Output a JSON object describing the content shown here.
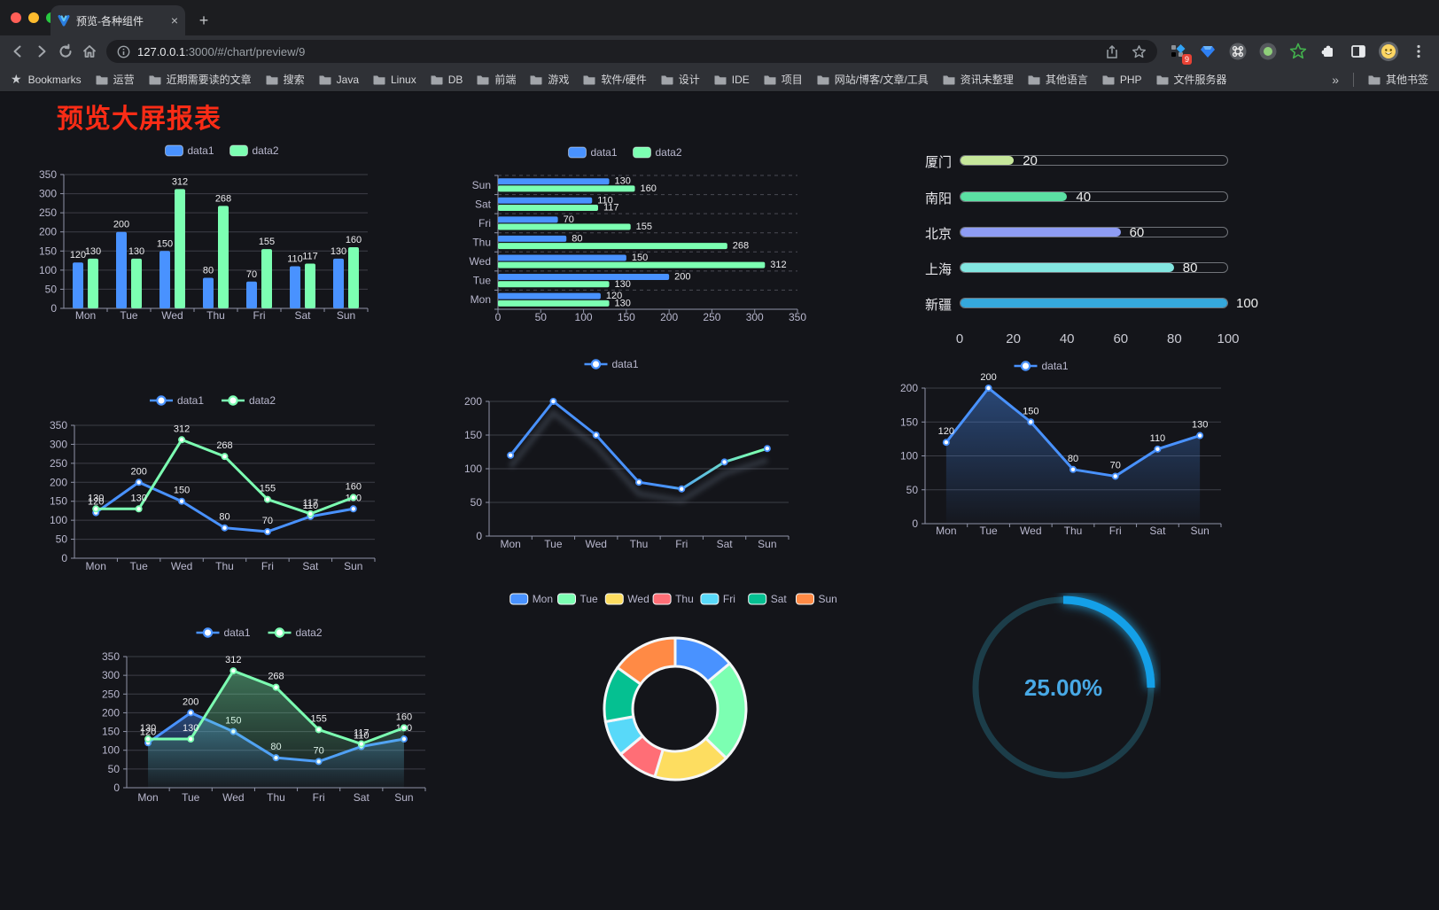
{
  "browser": {
    "traffic_lights": [
      "#ff5f57",
      "#febc2e",
      "#28c840"
    ],
    "tab": {
      "title": "预览-各种组件",
      "close_glyph": "×"
    },
    "new_tab_glyph": "+",
    "url": {
      "host": "127.0.0.1",
      "rest": ":3000/#/chart/preview/9"
    },
    "extension_badge": "9",
    "bookmarks_bar": {
      "star_glyph": "★",
      "label": "Bookmarks",
      "folders": [
        "运营",
        "近期需要读的文章",
        "搜索",
        "Java",
        "Linux",
        "DB",
        "前端",
        "游戏",
        "软件/硬件",
        "设计",
        "IDE",
        "项目",
        "网站/博客/文章/工具",
        "资讯未整理",
        "其他语言",
        "PHP",
        "文件服务器"
      ],
      "overflow_glyph": "»",
      "other_bookmarks": "其他书签"
    }
  },
  "page": {
    "title": "预览大屏报表",
    "title_color": "#fb2c16",
    "background": "#14151a"
  },
  "chart_data": [
    {
      "id": "grouped-bar",
      "type": "bar",
      "categories": [
        "Mon",
        "Tue",
        "Wed",
        "Thu",
        "Fri",
        "Sat",
        "Sun"
      ],
      "series": [
        {
          "name": "data1",
          "color": "#4992ff",
          "values": [
            120,
            200,
            150,
            80,
            70,
            110,
            130
          ]
        },
        {
          "name": "data2",
          "color": "#7cffb2",
          "values": [
            130,
            130,
            312,
            268,
            155,
            117,
            160
          ]
        }
      ],
      "ylim": [
        0,
        350
      ],
      "ytick_step": 50,
      "legend_position": "top",
      "value_labels": true,
      "grid": true
    },
    {
      "id": "grouped-bar-horizontal",
      "type": "bar",
      "orientation": "horizontal",
      "categories": [
        "Mon",
        "Tue",
        "Wed",
        "Thu",
        "Fri",
        "Sat",
        "Sun"
      ],
      "category_order": "Mon at bottom, Sun at top",
      "series": [
        {
          "name": "data1",
          "color": "#4992ff",
          "values": [
            120,
            200,
            150,
            80,
            70,
            110,
            130
          ]
        },
        {
          "name": "data2",
          "color": "#7cffb2",
          "values": [
            130,
            130,
            312,
            268,
            155,
            117,
            160
          ]
        }
      ],
      "xlim": [
        0,
        350
      ],
      "xtick_step": 50,
      "legend_position": "top",
      "value_labels": true
    },
    {
      "id": "city-progress-bars",
      "type": "bar",
      "subtype": "progress",
      "items": [
        {
          "label": "厦门",
          "value": 20,
          "color": "#c6e79b"
        },
        {
          "label": "南阳",
          "value": 40,
          "color": "#5be0a3"
        },
        {
          "label": "北京",
          "value": 60,
          "color": "#8e9cf3"
        },
        {
          "label": "上海",
          "value": 80,
          "color": "#83e6e1"
        },
        {
          "label": "新疆",
          "value": 100,
          "color": "#35a8dc"
        }
      ],
      "xlim": [
        0,
        100
      ],
      "xticks": [
        0,
        20,
        40,
        60,
        80,
        100
      ]
    },
    {
      "id": "line-two-series",
      "type": "line",
      "categories": [
        "Mon",
        "Tue",
        "Wed",
        "Thu",
        "Fri",
        "Sat",
        "Sun"
      ],
      "series": [
        {
          "name": "data1",
          "color": "#4992ff",
          "values": [
            120,
            200,
            150,
            80,
            70,
            110,
            130
          ]
        },
        {
          "name": "data2",
          "color": "#7cffb2",
          "values": [
            130,
            130,
            312,
            268,
            155,
            117,
            160
          ]
        }
      ],
      "ylim": [
        0,
        350
      ],
      "ytick_step": 50,
      "legend_position": "top",
      "value_labels": true
    },
    {
      "id": "line-gradient",
      "type": "line",
      "categories": [
        "Mon",
        "Tue",
        "Wed",
        "Thu",
        "Fri",
        "Sat",
        "Sun"
      ],
      "series": [
        {
          "name": "data1",
          "color": "#4992ff",
          "gradient_to": "#7cffb2",
          "values": [
            120,
            200,
            150,
            80,
            70,
            110,
            130
          ]
        }
      ],
      "ylim": [
        0,
        200
      ],
      "ytick_step": 50,
      "legend_position": "top",
      "value_labels": false
    },
    {
      "id": "area-single",
      "type": "area",
      "categories": [
        "Mon",
        "Tue",
        "Wed",
        "Thu",
        "Fri",
        "Sat",
        "Sun"
      ],
      "series": [
        {
          "name": "data1",
          "color": "#4992ff",
          "values": [
            120,
            200,
            150,
            80,
            70,
            110,
            130
          ]
        }
      ],
      "ylim": [
        0,
        200
      ],
      "ytick_step": 50,
      "legend_position": "top",
      "value_labels": true
    },
    {
      "id": "area-two-series",
      "type": "area",
      "categories": [
        "Mon",
        "Tue",
        "Wed",
        "Thu",
        "Fri",
        "Sat",
        "Sun"
      ],
      "series": [
        {
          "name": "data1",
          "color": "#4992ff",
          "values": [
            120,
            200,
            150,
            80,
            70,
            110,
            130
          ]
        },
        {
          "name": "data2",
          "color": "#7cffb2",
          "values": [
            130,
            130,
            312,
            268,
            155,
            117,
            160
          ]
        }
      ],
      "ylim": [
        0,
        350
      ],
      "ytick_step": 50,
      "legend_position": "top",
      "value_labels": true
    },
    {
      "id": "weekday-donut",
      "type": "pie",
      "subtype": "donut",
      "legend_position": "top",
      "items": [
        {
          "label": "Mon",
          "value": 120,
          "color": "#4992ff"
        },
        {
          "label": "Tue",
          "value": 200,
          "color": "#7cffb2"
        },
        {
          "label": "Wed",
          "value": 150,
          "color": "#fddd60"
        },
        {
          "label": "Thu",
          "value": 80,
          "color": "#ff6e76"
        },
        {
          "label": "Fri",
          "value": 70,
          "color": "#58d9f9"
        },
        {
          "label": "Sat",
          "value": 110,
          "color": "#05c091"
        },
        {
          "label": "Sun",
          "value": 130,
          "color": "#ff8a45"
        }
      ]
    },
    {
      "id": "progress-gauge",
      "type": "gauge",
      "percent": 25,
      "display": "25.00%",
      "colors": {
        "track": "#1c3d49",
        "progress": "#14a0e8",
        "text": "#48a9e6"
      }
    }
  ]
}
